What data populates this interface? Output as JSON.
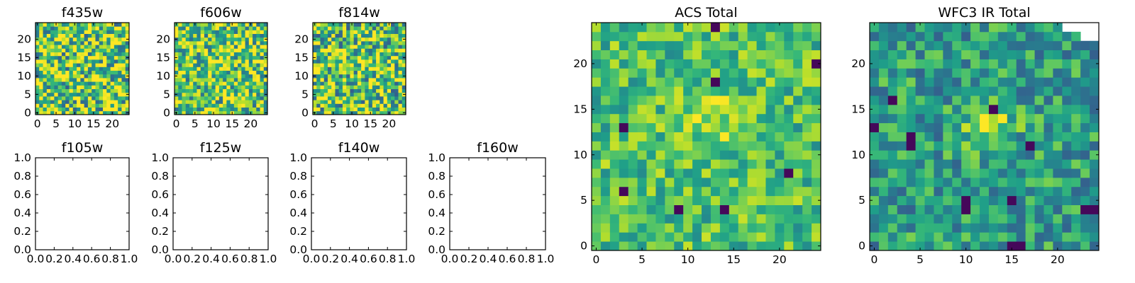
{
  "chart_data": [
    {
      "type": "heatmap",
      "title": "f435w",
      "xticks": [
        0,
        5,
        10,
        15,
        20
      ],
      "yticks": [
        0,
        5,
        10,
        15,
        20
      ],
      "xlim": [
        -0.5,
        24.5
      ],
      "ylim": [
        -0.5,
        24.5
      ],
      "grid_size": [
        25,
        25
      ],
      "colormap": "viridis",
      "seed": 435,
      "scale": 0.75,
      "noise": 0.9,
      "blob": 0.05
    },
    {
      "type": "heatmap",
      "title": "f606w",
      "xticks": [
        0,
        5,
        10,
        15,
        20
      ],
      "yticks": [
        0,
        5,
        10,
        15,
        20
      ],
      "xlim": [
        -0.5,
        24.5
      ],
      "ylim": [
        -0.5,
        24.5
      ],
      "grid_size": [
        25,
        25
      ],
      "colormap": "viridis",
      "seed": 606,
      "scale": 0.75,
      "noise": 0.8,
      "blob": 0.12
    },
    {
      "type": "heatmap",
      "title": "f814w",
      "xticks": [
        0,
        5,
        10,
        15,
        20
      ],
      "yticks": [
        0,
        5,
        10,
        15,
        20
      ],
      "xlim": [
        -0.5,
        24.5
      ],
      "ylim": [
        -0.5,
        24.5
      ],
      "grid_size": [
        25,
        25
      ],
      "colormap": "viridis",
      "seed": 814,
      "scale": 0.72,
      "noise": 0.85,
      "blob": 0.15
    },
    {
      "type": "empty",
      "title": "f105w",
      "xticks": [
        "0.0",
        "0.2",
        "0.4",
        "0.6",
        "0.8",
        "1.0"
      ],
      "yticks": [
        "0.0",
        "0.2",
        "0.4",
        "0.6",
        "0.8",
        "1.0"
      ],
      "xlim": [
        0,
        1
      ],
      "ylim": [
        0,
        1
      ]
    },
    {
      "type": "empty",
      "title": "f125w",
      "xticks": [
        "0.0",
        "0.2",
        "0.4",
        "0.6",
        "0.8",
        "1.0"
      ],
      "yticks": [
        "0.0",
        "0.2",
        "0.4",
        "0.6",
        "0.8",
        "1.0"
      ],
      "xlim": [
        0,
        1
      ],
      "ylim": [
        0,
        1
      ]
    },
    {
      "type": "empty",
      "title": "f140w",
      "xticks": [
        "0.0",
        "0.2",
        "0.4",
        "0.6",
        "0.8",
        "1.0"
      ],
      "yticks": [
        "0.0",
        "0.2",
        "0.4",
        "0.6",
        "0.8",
        "1.0"
      ],
      "xlim": [
        0,
        1
      ],
      "ylim": [
        0,
        1
      ]
    },
    {
      "type": "empty",
      "title": "f160w",
      "xticks": [
        "0.0",
        "0.2",
        "0.4",
        "0.6",
        "0.8",
        "1.0"
      ],
      "yticks": [
        "0.0",
        "0.2",
        "0.4",
        "0.6",
        "0.8",
        "1.0"
      ],
      "xlim": [
        0,
        1
      ],
      "ylim": [
        0,
        1
      ]
    },
    {
      "type": "heatmap",
      "title": "ACS Total",
      "xticks": [
        0,
        5,
        10,
        15,
        20
      ],
      "yticks": [
        0,
        5,
        10,
        15,
        20
      ],
      "xlim": [
        -0.5,
        24.5
      ],
      "ylim": [
        -0.5,
        24.5
      ],
      "grid_size": [
        25,
        25
      ],
      "colormap": "viridis",
      "seed": 1001,
      "scale": 0.7,
      "noise": 0.45,
      "blob": 0.2,
      "darkspots": [
        [
          3,
          13
        ],
        [
          13,
          18
        ],
        [
          9,
          4
        ],
        [
          14,
          4
        ],
        [
          21,
          8
        ],
        [
          3,
          6
        ],
        [
          24,
          20
        ],
        [
          13,
          24
        ]
      ]
    },
    {
      "type": "heatmap",
      "title": "WFC3 IR Total",
      "xticks": [
        0,
        5,
        10,
        15,
        20
      ],
      "yticks": [
        0,
        5,
        10,
        15,
        20
      ],
      "xlim": [
        -0.5,
        24.5
      ],
      "ylim": [
        -0.5,
        24.5
      ],
      "grid_size": [
        25,
        25
      ],
      "colormap": "viridis",
      "seed": 2002,
      "scale": 0.55,
      "noise": 0.5,
      "blob": 0.35,
      "darkspots": [
        [
          0,
          13
        ],
        [
          2,
          16
        ],
        [
          4,
          12
        ],
        [
          4,
          11
        ],
        [
          10,
          4
        ],
        [
          10,
          5
        ],
        [
          13,
          15
        ],
        [
          15,
          5
        ],
        [
          15,
          0
        ],
        [
          16,
          0
        ],
        [
          23,
          4
        ],
        [
          24,
          4
        ],
        [
          17,
          11
        ]
      ],
      "empty_cells": [
        [
          21,
          24
        ],
        [
          22,
          24
        ],
        [
          23,
          24
        ],
        [
          24,
          24
        ],
        [
          23,
          23
        ],
        [
          24,
          23
        ]
      ]
    }
  ]
}
